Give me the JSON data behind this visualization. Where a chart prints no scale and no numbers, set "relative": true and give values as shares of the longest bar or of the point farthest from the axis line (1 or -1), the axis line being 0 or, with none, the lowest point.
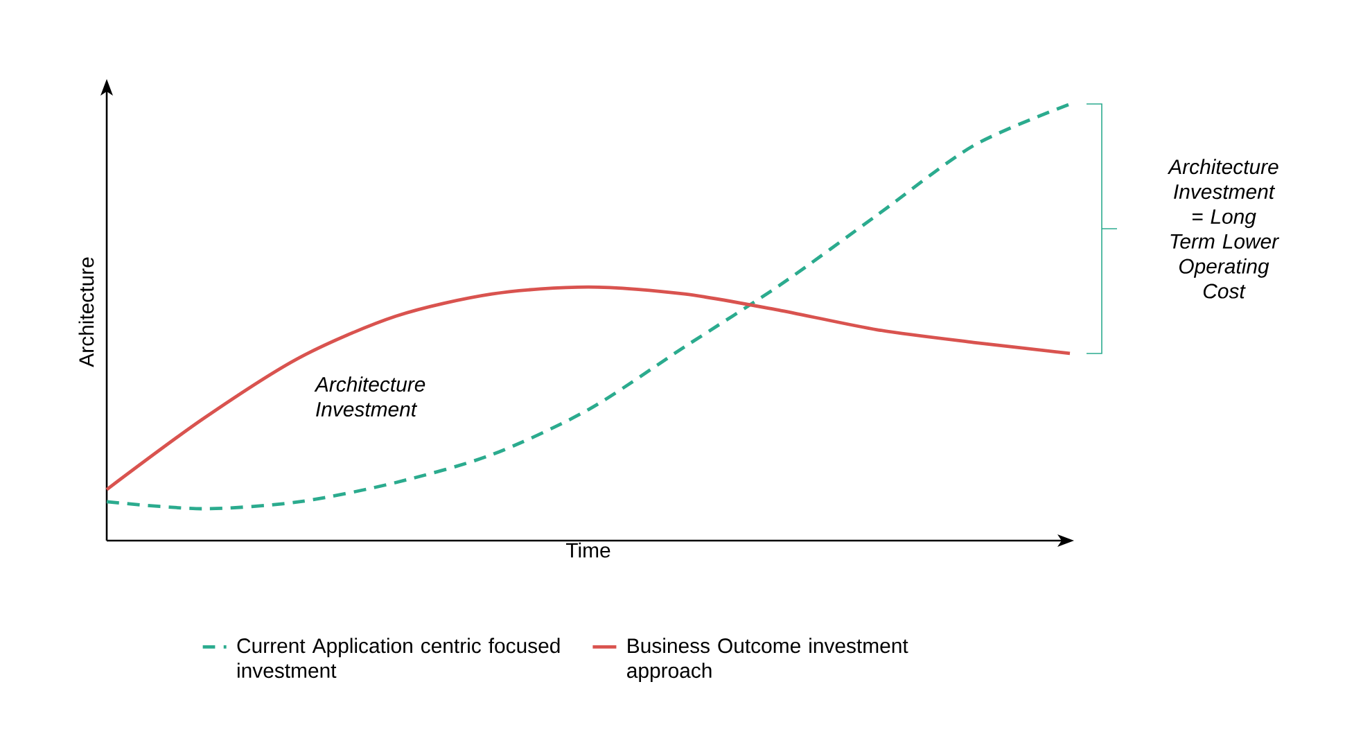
{
  "chart_data": {
    "type": "line",
    "relative": true,
    "xlabel": "Time",
    "ylabel": "Architecture",
    "categories": [
      null,
      null,
      null,
      null,
      null,
      null,
      null,
      null,
      null,
      null,
      null
    ],
    "series": [
      {
        "name": "Current Application centric focused investment",
        "color": "#2bab8e",
        "line_style": "dashed",
        "values": [
          0.089,
          0.073,
          0.089,
          0.133,
          0.197,
          0.3,
          0.444,
          0.587,
          0.746,
          0.905,
          1.0
        ]
      },
      {
        "name": "Business Outcome investment approach",
        "color": "#d9534f",
        "line_style": "solid",
        "values": [
          0.117,
          0.279,
          0.419,
          0.514,
          0.565,
          0.581,
          0.565,
          0.527,
          0.483,
          0.454,
          0.429
        ]
      }
    ],
    "legend": "bottom",
    "marker": "none",
    "annotations": [
      "Architecture Investment",
      "Architecture Investment = Long Term Lower Operating Cost"
    ]
  }
}
